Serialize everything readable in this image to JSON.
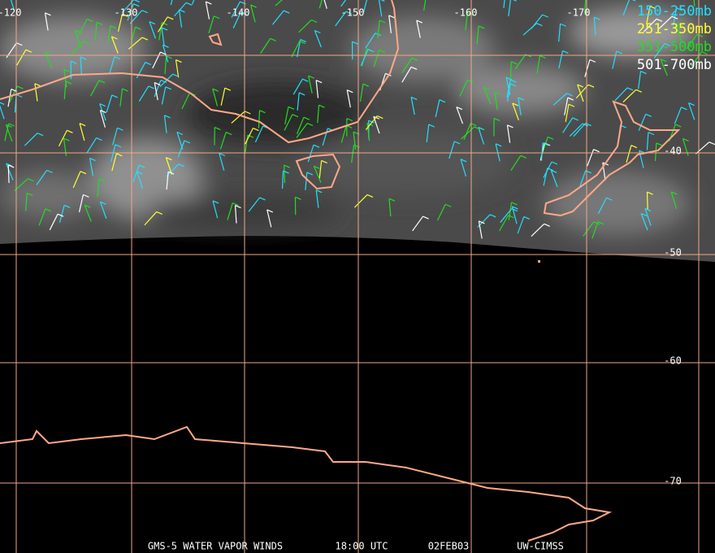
{
  "map": {
    "longitude_labels": [
      "-120",
      "-130",
      "-140",
      "-150",
      "-160",
      "-170"
    ],
    "latitude_labels": [
      "-40",
      "-50",
      "-60",
      "-70"
    ],
    "legend": [
      {
        "label": "150-250mb",
        "color": "#22e0ff"
      },
      {
        "label": "251-350mb",
        "color": "#ffff33"
      },
      {
        "label": "351-500mb",
        "color": "#22dd22"
      },
      {
        "label": "501-700mb",
        "color": "#ffffff"
      }
    ],
    "footer": [
      "GMS-5 WATER VAPOR WINDS",
      "18:00 UTC",
      "02FEB03",
      "UW-CIMSS"
    ]
  }
}
